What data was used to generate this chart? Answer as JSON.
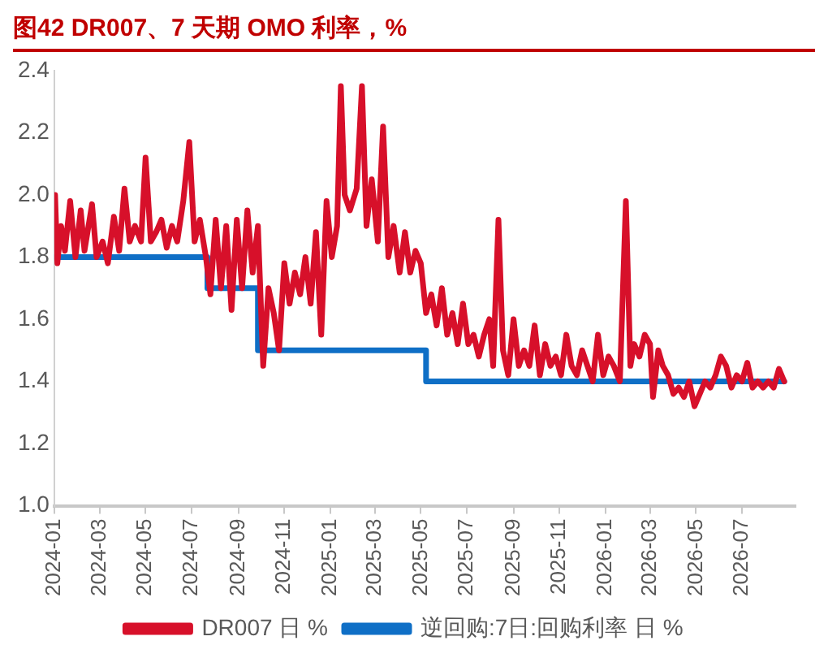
{
  "chart_data": {
    "type": "line",
    "title": "图42  DR007、7 天期 OMO 利率，%",
    "legend": "bottom",
    "grid": false,
    "marker": "none",
    "line_style": "solid",
    "xlim": [
      "2024-01-01",
      "2026-09-10"
    ],
    "xticks": [
      "2024-01",
      "2024-03",
      "2024-05",
      "2024-07",
      "2024-09",
      "2024-11",
      "2025-01",
      "2025-03",
      "2025-05",
      "2025-07",
      "2025-09",
      "2025-11",
      "2026-01",
      "2026-03",
      "2026-05",
      "2026-07"
    ],
    "ylim": [
      1.0,
      2.4
    ],
    "yticks": [
      {
        "value": 1.0,
        "label": "1.0"
      },
      1.2,
      1.4,
      1.6,
      1.8,
      {
        "value": 2.0,
        "label": "2.0"
      },
      2.2,
      2.4
    ],
    "series": [
      {
        "name": "DR007 日 %",
        "color": "#d7102a",
        "type": "line",
        "x": [
          "2024-01-02",
          "2024-01-05",
          "2024-01-10",
          "2024-01-15",
          "2024-01-22",
          "2024-01-29",
          "2024-02-05",
          "2024-02-10",
          "2024-02-20",
          "2024-02-26",
          "2024-03-05",
          "2024-03-12",
          "2024-03-20",
          "2024-03-27",
          "2024-04-03",
          "2024-04-10",
          "2024-04-17",
          "2024-04-25",
          "2024-05-01",
          "2024-05-08",
          "2024-05-15",
          "2024-05-22",
          "2024-05-29",
          "2024-06-05",
          "2024-06-12",
          "2024-06-20",
          "2024-06-28",
          "2024-07-05",
          "2024-07-12",
          "2024-07-20",
          "2024-07-26",
          "2024-08-02",
          "2024-08-09",
          "2024-08-16",
          "2024-08-23",
          "2024-08-30",
          "2024-09-06",
          "2024-09-13",
          "2024-09-20",
          "2024-09-27",
          "2024-10-04",
          "2024-10-11",
          "2024-10-18",
          "2024-10-25",
          "2024-11-01",
          "2024-11-08",
          "2024-11-15",
          "2024-11-22",
          "2024-11-29",
          "2024-12-06",
          "2024-12-13",
          "2024-12-20",
          "2024-12-27",
          "2025-01-03",
          "2025-01-10",
          "2025-01-15",
          "2025-01-20",
          "2025-01-27",
          "2025-02-05",
          "2025-02-12",
          "2025-02-18",
          "2025-02-25",
          "2025-03-05",
          "2025-03-12",
          "2025-03-19",
          "2025-03-26",
          "2025-04-03",
          "2025-04-10",
          "2025-04-17",
          "2025-04-24",
          "2025-05-01",
          "2025-05-08",
          "2025-05-15",
          "2025-05-22",
          "2025-05-29",
          "2025-06-05",
          "2025-06-12",
          "2025-06-19",
          "2025-06-26",
          "2025-07-03",
          "2025-07-10",
          "2025-07-17",
          "2025-07-24",
          "2025-07-31",
          "2025-08-05",
          "2025-08-12",
          "2025-08-18",
          "2025-08-25",
          "2025-09-01",
          "2025-09-08",
          "2025-09-15",
          "2025-09-22",
          "2025-09-29",
          "2025-10-06",
          "2025-10-13",
          "2025-10-20",
          "2025-10-27",
          "2025-11-03",
          "2025-11-10",
          "2025-11-17",
          "2025-11-24",
          "2025-12-01",
          "2025-12-08",
          "2025-12-15",
          "2025-12-22",
          "2025-12-29",
          "2026-01-05",
          "2026-01-12",
          "2026-01-20",
          "2026-01-28",
          "2026-02-03",
          "2026-02-08",
          "2026-02-15",
          "2026-02-22",
          "2026-03-01",
          "2026-03-05",
          "2026-03-12",
          "2026-03-18",
          "2026-03-25",
          "2026-04-01",
          "2026-04-08",
          "2026-04-15",
          "2026-04-22",
          "2026-04-29",
          "2026-05-06",
          "2026-05-13",
          "2026-05-20",
          "2026-05-27",
          "2026-06-03",
          "2026-06-10",
          "2026-06-17",
          "2026-06-24",
          "2026-07-01",
          "2026-07-08",
          "2026-07-15",
          "2026-07-22",
          "2026-07-29",
          "2026-08-05",
          "2026-08-12",
          "2026-08-19",
          "2026-08-26"
        ],
        "values": [
          2.0,
          1.78,
          1.9,
          1.82,
          1.98,
          1.8,
          1.95,
          1.82,
          1.97,
          1.8,
          1.85,
          1.78,
          1.93,
          1.82,
          2.02,
          1.85,
          1.9,
          1.85,
          2.12,
          1.85,
          1.88,
          1.92,
          1.83,
          1.9,
          1.85,
          1.98,
          2.17,
          1.85,
          1.92,
          1.8,
          1.68,
          1.92,
          1.7,
          1.9,
          1.63,
          1.92,
          1.7,
          1.95,
          1.75,
          1.9,
          1.45,
          1.7,
          1.62,
          1.5,
          1.78,
          1.65,
          1.75,
          1.68,
          1.8,
          1.65,
          1.88,
          1.55,
          1.98,
          1.8,
          1.9,
          2.35,
          2.0,
          1.95,
          2.02,
          2.35,
          1.9,
          2.05,
          1.85,
          2.22,
          1.8,
          1.9,
          1.75,
          1.88,
          1.75,
          1.82,
          1.78,
          1.62,
          1.68,
          1.58,
          1.7,
          1.55,
          1.62,
          1.52,
          1.65,
          1.52,
          1.55,
          1.48,
          1.55,
          1.6,
          1.45,
          1.92,
          1.5,
          1.42,
          1.6,
          1.45,
          1.5,
          1.45,
          1.58,
          1.42,
          1.52,
          1.45,
          1.48,
          1.42,
          1.55,
          1.45,
          1.42,
          1.5,
          1.45,
          1.4,
          1.55,
          1.42,
          1.48,
          1.45,
          1.4,
          1.98,
          1.45,
          1.52,
          1.48,
          1.55,
          1.52,
          1.35,
          1.5,
          1.45,
          1.42,
          1.36,
          1.38,
          1.35,
          1.4,
          1.32,
          1.36,
          1.4,
          1.38,
          1.42,
          1.48,
          1.45,
          1.38,
          1.42,
          1.4,
          1.46,
          1.38,
          1.4,
          1.38,
          1.4,
          1.38,
          1.44,
          1.4
        ]
      },
      {
        "name": "逆回购:7日:回购利率 日 %",
        "color": "#0f6fc6",
        "type": "step",
        "x": [
          "2024-01-02",
          "2024-07-22",
          "2024-09-27",
          "2025-05-08",
          "2026-08-26"
        ],
        "values": [
          1.8,
          1.7,
          1.5,
          1.4,
          1.4
        ]
      }
    ]
  }
}
